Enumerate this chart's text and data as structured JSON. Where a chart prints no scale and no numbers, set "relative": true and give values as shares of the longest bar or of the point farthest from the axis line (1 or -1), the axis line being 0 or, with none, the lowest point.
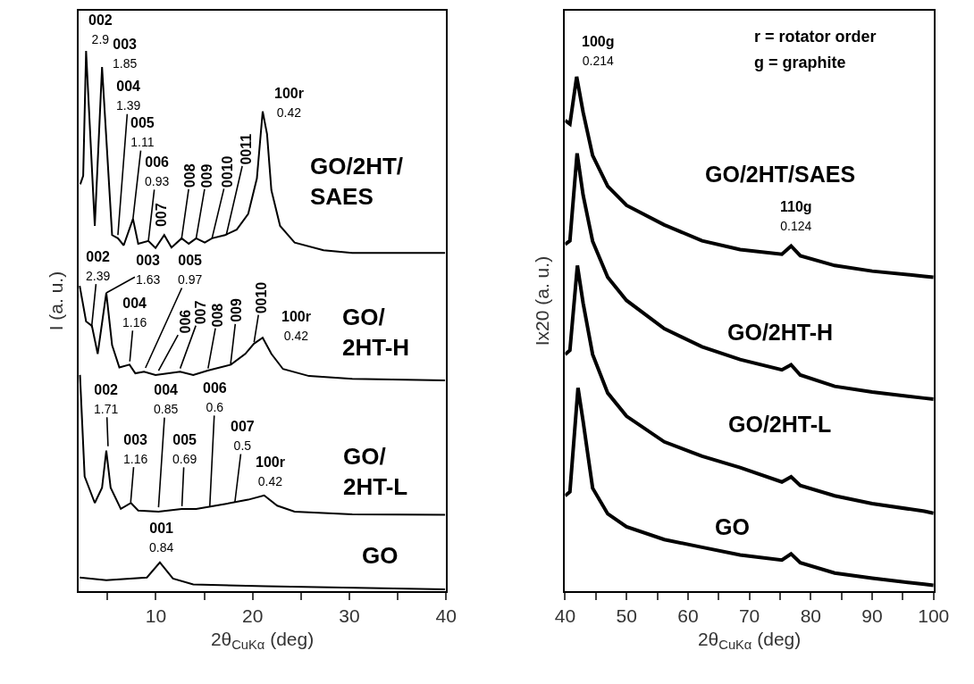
{
  "chart_data": [
    {
      "type": "line",
      "relative": true,
      "legend": false,
      "xlim": [
        2,
        40
      ],
      "xticks": [
        {
          "value": 5,
          "label": null
        },
        10,
        {
          "value": 15,
          "label": null
        },
        20,
        {
          "value": 25,
          "label": null
        },
        30,
        {
          "value": 35,
          "label": null
        },
        40
      ],
      "xlabel": "2θ$_{CuKα}$ (deg)",
      "ylabel": "I (a. u.)",
      "series": [
        {
          "name": "GO/2HT/SAES",
          "color": "#000000",
          "x": [
            2.18,
            2.48,
            2.78,
            3.68,
            4.43,
            5.47,
            6.07,
            6.67,
            7.63,
            8.17,
            9.22,
            9.96,
            10.86,
            11.61,
            12.66,
            13.4,
            14.16,
            15.05,
            15.8,
            17.15,
            18.35,
            19.54,
            20.44,
            21.04,
            21.49,
            21.94,
            22.84,
            24.34,
            27.33,
            30.3,
            36.3,
            39.9
          ],
          "values": [
            0.753,
            0.769,
            1.0,
            0.676,
            0.97,
            0.659,
            0.653,
            0.64,
            0.689,
            0.643,
            0.648,
            0.635,
            0.659,
            0.636,
            0.653,
            0.643,
            0.653,
            0.645,
            0.653,
            0.659,
            0.669,
            0.698,
            0.764,
            0.888,
            0.846,
            0.742,
            0.676,
            0.645,
            0.631,
            0.626,
            0.626,
            0.626
          ]
        },
        {
          "name": "GO/2HT-H",
          "color": "#000000",
          "x": [
            2.12,
            2.78,
            3.38,
            3.98,
            4.87,
            5.47,
            6.22,
            7.27,
            7.87,
            8.77,
            9.96,
            12.5,
            13.86,
            15.35,
            17.75,
            19.24,
            20.14,
            21.04,
            21.94,
            23.14,
            25.83,
            30.3,
            39.9
          ],
          "values": [
            0.565,
            0.499,
            0.491,
            0.439,
            0.552,
            0.455,
            0.414,
            0.419,
            0.403,
            0.406,
            0.4,
            0.406,
            0.4,
            0.408,
            0.419,
            0.439,
            0.458,
            0.469,
            0.439,
            0.411,
            0.398,
            0.393,
            0.39
          ]
        },
        {
          "name": "GO/2HT-L",
          "color": "#000000",
          "x": [
            2.15,
            2.63,
            3.68,
            4.43,
            4.87,
            5.32,
            6.37,
            7.42,
            8.17,
            10.26,
            12.66,
            14.16,
            16.85,
            19.54,
            21.19,
            22.54,
            24.34,
            30.3,
            39.9
          ],
          "values": [
            0.4,
            0.212,
            0.163,
            0.191,
            0.26,
            0.191,
            0.152,
            0.163,
            0.149,
            0.147,
            0.152,
            0.152,
            0.16,
            0.169,
            0.177,
            0.158,
            0.147,
            0.142,
            0.141
          ]
        },
        {
          "name": "GO",
          "color": "#000000",
          "x": [
            2.12,
            4.87,
            9.07,
            10.41,
            11.76,
            13.86,
            21.34,
            39.9
          ],
          "values": [
            0.025,
            0.02,
            0.025,
            0.053,
            0.023,
            0.012,
            0.009,
            0.003
          ]
        }
      ],
      "annotations": [
        {
          "text": "002\n2.9",
          "x": 2.78,
          "y": 1.0
        },
        {
          "text": "003\n1.85",
          "x": 4.43,
          "y": 0.97
        },
        {
          "text": "004\n1.39",
          "x": 6.07,
          "y": 0.659
        },
        {
          "text": "005\n1.11",
          "x": 7.63,
          "y": 0.689
        },
        {
          "text": "006\n0.93",
          "x": 9.22,
          "y": 0.648
        },
        {
          "text": "007",
          "x": 10.86,
          "y": 0.659
        },
        {
          "text": "008",
          "x": 12.66,
          "y": 0.653
        },
        {
          "text": "009",
          "x": 14.16,
          "y": 0.653
        },
        {
          "text": "0010",
          "x": 15.8,
          "y": 0.653
        },
        {
          "text": "0011",
          "x": 17.3,
          "y": 0.661
        },
        {
          "text": "100r\n0.42",
          "x": 21.04,
          "y": 0.888
        },
        {
          "text": "002\n2.39",
          "x": 3.35,
          "y": 0.488
        },
        {
          "text": "003\n1.63",
          "x": 4.87,
          "y": 0.552
        },
        {
          "text": "005\n0.97",
          "x": 8.92,
          "y": 0.413
        },
        {
          "text": "004\n1.16",
          "x": 7.3,
          "y": 0.425
        },
        {
          "text": "006",
          "x": 10.27,
          "y": 0.408
        },
        {
          "text": "007",
          "x": 12.51,
          "y": 0.412
        },
        {
          "text": "008",
          "x": 15.39,
          "y": 0.412
        },
        {
          "text": "009",
          "x": 17.72,
          "y": 0.42
        },
        {
          "text": "0010",
          "x": 20.15,
          "y": 0.461
        },
        {
          "text": "100r\n0.42",
          "x": 21.05,
          "y": 0.469
        },
        {
          "text": "002\n1.71",
          "x": 5.05,
          "y": 0.268
        },
        {
          "text": "003\n1.16",
          "x": 7.39,
          "y": 0.164
        },
        {
          "text": "004\n0.85",
          "x": 10.27,
          "y": 0.155
        },
        {
          "text": "005\n0.69",
          "x": 12.69,
          "y": 0.157
        },
        {
          "text": "006\n0.6",
          "x": 15.57,
          "y": 0.157
        },
        {
          "text": "007\n0.5",
          "x": 18.17,
          "y": 0.165
        },
        {
          "text": "100r\n0.42",
          "x": 21.23,
          "y": 0.177
        },
        {
          "text": "001\n0.84",
          "x": 10.45,
          "y": 0.053
        }
      ]
    },
    {
      "type": "line",
      "relative": true,
      "legend": false,
      "xlim": [
        40,
        100
      ],
      "xticks": [
        40,
        {
          "value": 45,
          "label": null
        },
        50,
        {
          "value": 55,
          "label": null
        },
        60,
        {
          "value": 65,
          "label": null
        },
        70,
        {
          "value": 75,
          "label": null
        },
        80,
        {
          "value": 85,
          "label": null
        },
        90,
        {
          "value": 95,
          "label": null
        },
        100
      ],
      "xlabel": "2θ$_{CuKα}$ (deg)",
      "ylabel": "Ix20 (a. u.)",
      "series": [
        {
          "name": "GO/2HT/SAES",
          "color": "#000000",
          "x": [
            40,
            40.78,
            41.88,
            42.93,
            44.48,
            46.94,
            50,
            56.15,
            62.3,
            68.5,
            75.3,
            76.8,
            78.3,
            83.9,
            90,
            98.5,
            100
          ],
          "values": [
            0.915,
            0.908,
            1.0,
            0.931,
            0.847,
            0.787,
            0.75,
            0.712,
            0.681,
            0.664,
            0.655,
            0.671,
            0.652,
            0.633,
            0.622,
            0.612,
            0.61
          ]
        },
        {
          "name": "GO/2HT-H",
          "color": "#000000",
          "x": [
            40,
            40.78,
            41.95,
            42.93,
            44.48,
            46.94,
            50,
            56.15,
            62.3,
            68.5,
            75.3,
            76.8,
            78.3,
            83.9,
            90,
            98.5,
            100
          ],
          "values": [
            0.674,
            0.681,
            0.851,
            0.77,
            0.68,
            0.61,
            0.565,
            0.51,
            0.475,
            0.45,
            0.43,
            0.44,
            0.42,
            0.398,
            0.387,
            0.375,
            0.373
          ]
        },
        {
          "name": "GO/2HT-L",
          "color": "#000000",
          "x": [
            40,
            40.78,
            42.0,
            42.93,
            44.48,
            46.94,
            50,
            56.15,
            62.3,
            68.5,
            75.3,
            76.8,
            78.3,
            83.9,
            90,
            98.5,
            100
          ],
          "values": [
            0.46,
            0.468,
            0.633,
            0.56,
            0.46,
            0.385,
            0.34,
            0.29,
            0.262,
            0.24,
            0.212,
            0.222,
            0.205,
            0.185,
            0.17,
            0.155,
            0.151
          ]
        },
        {
          "name": "GO",
          "color": "#000000",
          "x": [
            40,
            40.78,
            42.1,
            42.93,
            44.48,
            46.94,
            50,
            56.15,
            62.3,
            68.5,
            75.3,
            76.8,
            78.3,
            83.9,
            90,
            98.5,
            100
          ],
          "values": [
            0.185,
            0.193,
            0.395,
            0.33,
            0.2,
            0.15,
            0.125,
            0.1,
            0.085,
            0.07,
            0.06,
            0.072,
            0.055,
            0.035,
            0.025,
            0.013,
            0.011
          ]
        }
      ],
      "annotations": [
        {
          "text": "100g\n0.214",
          "x": 41.88,
          "y": 1.0
        },
        {
          "text": "110g\n0.124",
          "x": 76.8,
          "y": 0.671
        },
        "r = rotator order",
        "g = graphite"
      ]
    }
  ]
}
